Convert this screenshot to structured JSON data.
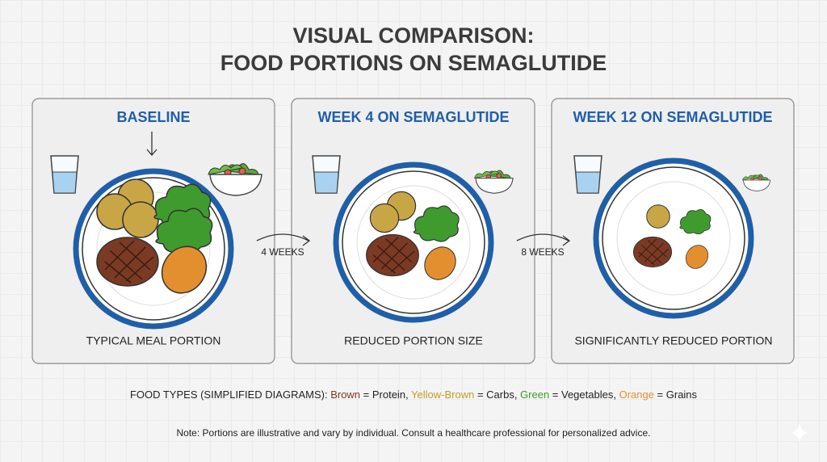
{
  "title": {
    "line1": "VISUAL COMPARISON:",
    "line2": "FOOD PORTIONS ON SEMAGLUTIDE"
  },
  "panels": [
    {
      "heading": "BASELINE",
      "caption": "TYPICAL MEAL PORTION"
    },
    {
      "heading": "WEEK 4 ON SEMAGLUTIDE",
      "caption": "REDUCED PORTION SIZE"
    },
    {
      "heading": "WEEK 12 ON SEMAGLUTIDE",
      "caption": "SIGNIFICANTLY REDUCED PORTION"
    }
  ],
  "transitions": [
    {
      "label": "4 WEEKS"
    },
    {
      "label": "8 WEEKS"
    }
  ],
  "legend": {
    "prefix": "FOOD TYPES (SIMPLIFIED DIAGRAMS): ",
    "items": [
      {
        "term": "Brown",
        "text": " = Protein, "
      },
      {
        "term": "Yellow-Brown",
        "text": " = Carbs, "
      },
      {
        "term": "Green",
        "text": " = Vegetables, "
      },
      {
        "term": "Orange",
        "text": " = Grains"
      }
    ]
  },
  "note": "Note: Portions are illustrative and vary by individual. Consult a healthcare professional for personalized advice."
}
